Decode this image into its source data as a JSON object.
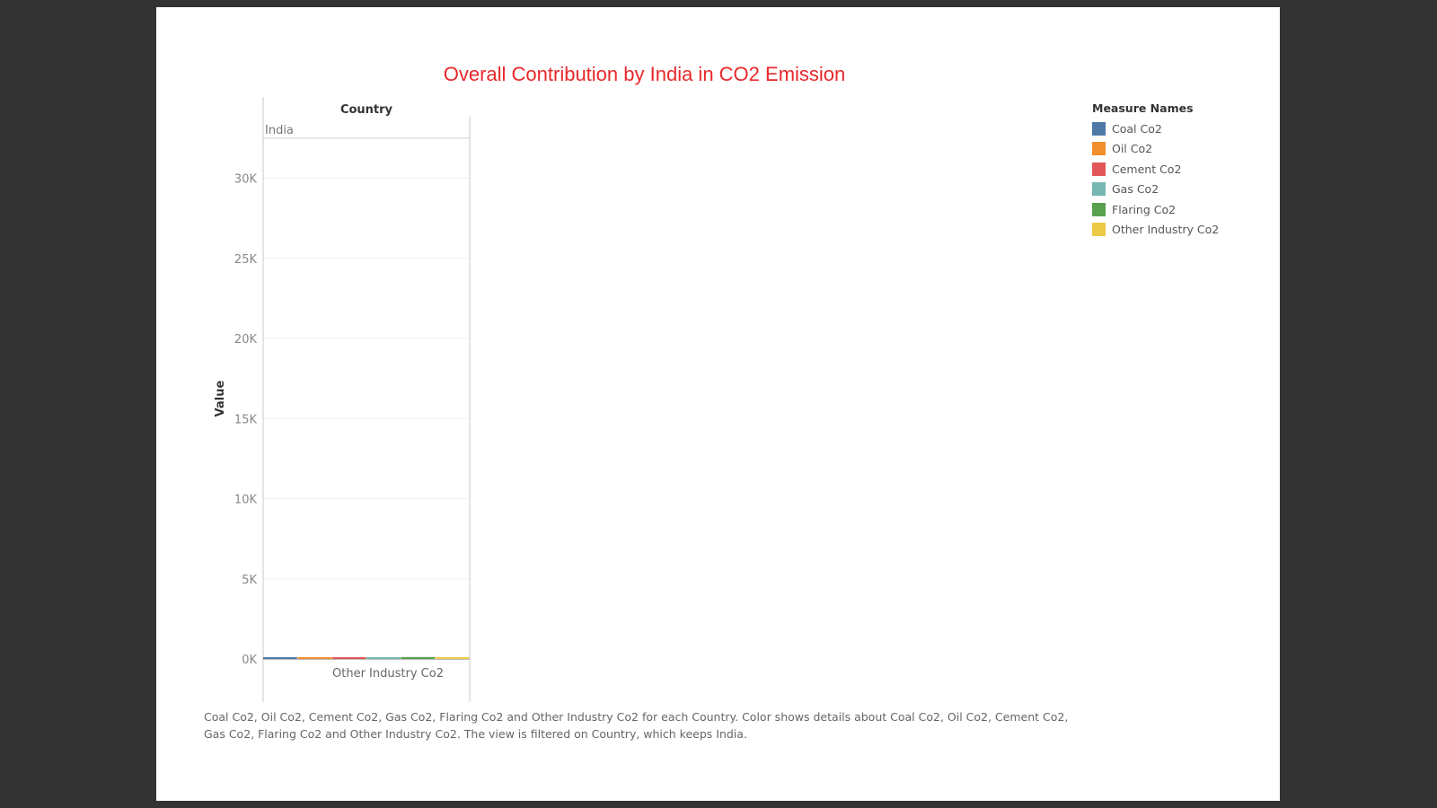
{
  "chart_data": {
    "type": "bar",
    "title": "Overall Contribution by India in CO2 Emission",
    "column_header": "Country",
    "pane_label": "India",
    "xlabel": "",
    "ylabel": "Value",
    "x_tick_label": "Other Industry Co2",
    "ylim": [
      -2000,
      32500
    ],
    "y_ticks": [
      {
        "value": 0,
        "label": "0K"
      },
      {
        "value": 5000,
        "label": "5K"
      },
      {
        "value": 10000,
        "label": "10K"
      },
      {
        "value": 15000,
        "label": "15K"
      },
      {
        "value": 20000,
        "label": "20K"
      },
      {
        "value": 25000,
        "label": "25K"
      },
      {
        "value": 30000,
        "label": "30K"
      }
    ],
    "grid": true,
    "legend_title": "Measure Names",
    "legend_position": "right",
    "series": [
      {
        "name": "Coal Co2",
        "color": "#4e79a7",
        "value": 0
      },
      {
        "name": "Oil Co2",
        "color": "#f28e2b",
        "value": 0
      },
      {
        "name": "Cement Co2",
        "color": "#e15759",
        "value": 0
      },
      {
        "name": "Gas Co2",
        "color": "#76b7b2",
        "value": 0
      },
      {
        "name": "Flaring Co2",
        "color": "#59a14f",
        "value": 120
      },
      {
        "name": "Other Industry Co2",
        "color": "#edc948",
        "value": 0
      }
    ]
  },
  "caption": "Coal Co2, Oil Co2, Cement Co2, Gas Co2, Flaring Co2 and Other Industry Co2 for each Country.  Color shows details about Coal Co2, Oil Co2, Cement Co2, Gas Co2, Flaring Co2 and Other Industry Co2. The view is filtered on Country, which keeps India."
}
